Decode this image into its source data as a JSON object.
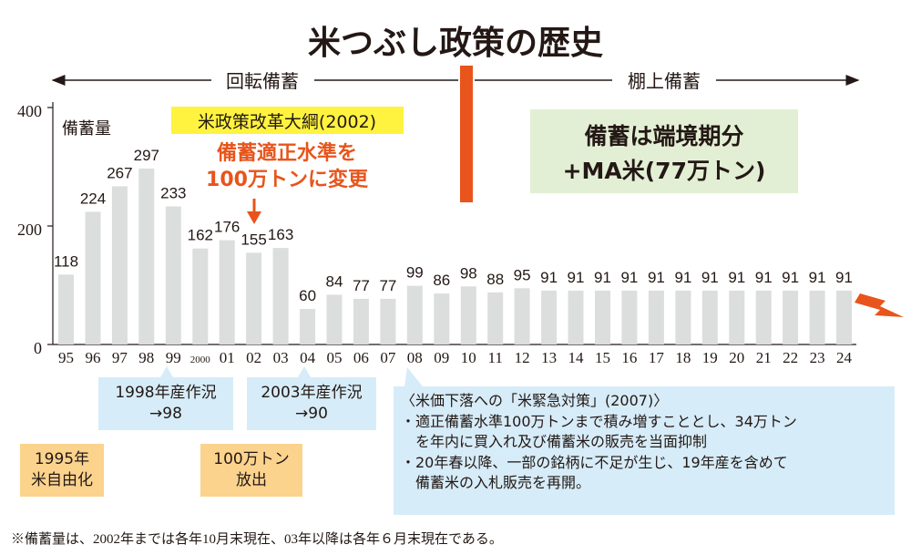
{
  "title": "米つぶし政策の歴史",
  "footnote": "※備蓄量は、2002年までは各年10月末現在、03年以降は各年６月末現在である。",
  "periods": {
    "left": "回転備蓄",
    "right": "棚上備蓄"
  },
  "policy_2002": {
    "label": "米政策改革大綱(2002)",
    "change_line1": "備蓄適正水準を",
    "change_line2": "100万トンに変更"
  },
  "tanaage_note": {
    "line1": "備蓄は端境期分",
    "line2": "+MA米(77万トン)"
  },
  "notes": {
    "crop_1998": {
      "line1": "1998年産作況",
      "line2": "→98"
    },
    "crop_2003": {
      "line1": "2003年産作況",
      "line2": "→90"
    },
    "liberalization_1995": {
      "line1": "1995年",
      "line2": "米自由化"
    },
    "release_1mt": {
      "line1": "100万トン",
      "line2": "放出"
    },
    "emergency_2007": {
      "heading": "〈米価下落への「米緊急対策」(2007)〉",
      "bullet1_line1": "・適正備蓄水準100万トンまで積み増すこととし、34万トン",
      "bullet1_line2": "を年内に買入れ及び備蓄米の販売を当面抑制",
      "bullet2_line1": "・20年春以降、一部の銘柄に不足が生じ、19年産を含めて",
      "bullet2_line2": "備蓄米の入札販売を再開。"
    }
  },
  "colors": {
    "bar": "#dcdddd",
    "accent_orange": "#e8541b",
    "highlight_yellow": "#fff33f",
    "note_green": "#e3efd4",
    "note_blue": "#d6ecf8",
    "note_orange": "#fbd38d"
  },
  "chart_data": {
    "type": "bar",
    "ylabel": "備蓄量",
    "ylim": [
      0,
      400
    ],
    "yticks": [
      "0",
      "200",
      "400"
    ],
    "categories": [
      "95",
      "96",
      "97",
      "98",
      "99",
      "2000",
      "01",
      "02",
      "03",
      "04",
      "05",
      "06",
      "07",
      "08",
      "09",
      "10",
      "11",
      "12",
      "13",
      "14",
      "15",
      "16",
      "17",
      "18",
      "19",
      "20",
      "21",
      "22",
      "23",
      "24"
    ],
    "values": [
      118,
      224,
      267,
      297,
      233,
      162,
      176,
      155,
      163,
      60,
      84,
      77,
      77,
      99,
      86,
      98,
      88,
      95,
      91,
      91,
      91,
      91,
      91,
      91,
      91,
      91,
      91,
      91,
      91,
      91
    ]
  }
}
